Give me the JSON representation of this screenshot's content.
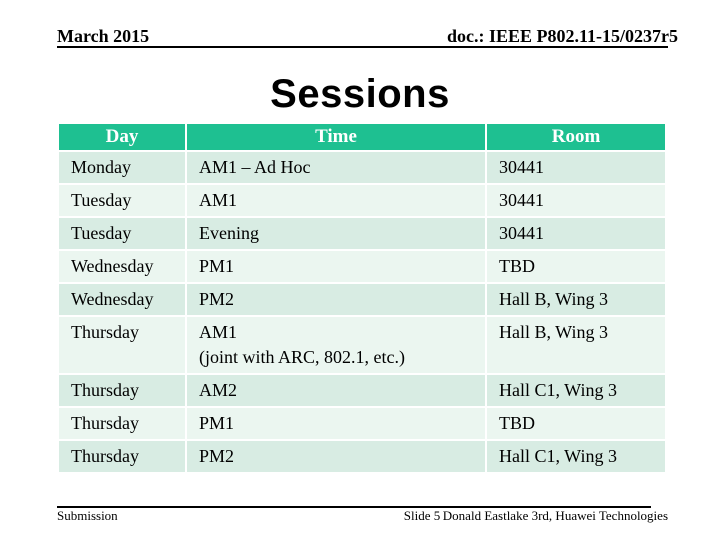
{
  "header": {
    "date": "March 2015",
    "doc": "doc.: IEEE P802.11-15/0237r5"
  },
  "title": "Sessions",
  "table": {
    "columns": [
      "Day",
      "Time",
      "Room"
    ],
    "rows": [
      {
        "day": "Monday",
        "time": "AM1 – Ad Hoc",
        "room": "30441"
      },
      {
        "day": "Tuesday",
        "time": "AM1",
        "room": "30441"
      },
      {
        "day": "Tuesday",
        "time": "Evening",
        "room": "30441"
      },
      {
        "day": "Wednesday",
        "time": "PM1",
        "room": "TBD"
      },
      {
        "day": "Wednesday",
        "time": "PM2",
        "room": "Hall B, Wing 3"
      },
      {
        "day": "Thursday",
        "time": "AM1",
        "time_line2": "(joint with ARC, 802.1, etc.)",
        "room": "Hall B, Wing 3"
      },
      {
        "day": "Thursday",
        "time": "AM2",
        "room": "Hall C1, Wing 3"
      },
      {
        "day": "Thursday",
        "time": "PM1",
        "room": "TBD"
      },
      {
        "day": "Thursday",
        "time": "PM2",
        "room": "Hall C1, Wing 3"
      }
    ]
  },
  "footer": {
    "left": "Submission",
    "center": "Slide 5",
    "right": "Donald Eastlake 3rd, Huawei Technologies"
  },
  "colors": {
    "header_bg": "#1ec091",
    "header_text": "#ffffff",
    "row_dark": "#d8ece3",
    "row_light": "#ebf6f0",
    "text": "#000000"
  }
}
